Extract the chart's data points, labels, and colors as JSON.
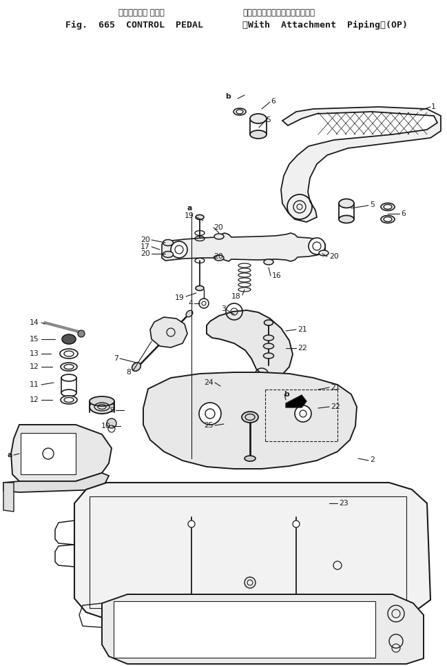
{
  "title_jp_left": "コントロール ペダル",
  "title_jp_right": "（アタッチメントバイピング付）",
  "title_en_left": "Fig.  665  CONTROL  PEDAL",
  "title_en_right": "（With  Attachment  Piping）(OP)",
  "bg_color": "#ffffff",
  "line_color": "#1a1a1a",
  "fig_width": 6.49,
  "fig_height": 9.66,
  "dpi": 100
}
